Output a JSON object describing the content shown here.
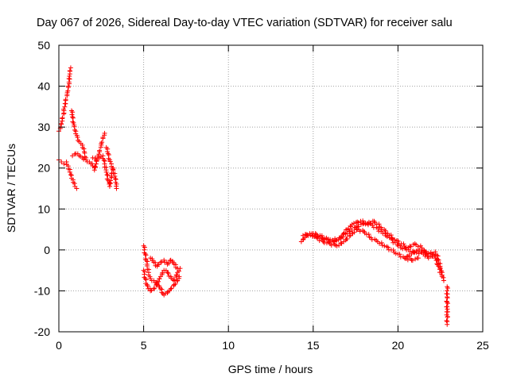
{
  "chart_data": {
    "type": "scatter",
    "title": "Day 067 of 2026, Sidereal Day-to-day VTEC variation (SDTVAR) for receiver salu",
    "xlabel": "GPS time / hours",
    "ylabel": "SDTVAR / TECUs",
    "xlim": [
      0,
      25
    ],
    "ylim": [
      -20,
      50
    ],
    "xticks": [
      0,
      5,
      10,
      15,
      20,
      25
    ],
    "yticks": [
      -20,
      -10,
      0,
      10,
      20,
      30,
      40,
      50
    ],
    "grid": true,
    "marker": "+",
    "color": "#ff0000",
    "series": [
      {
        "name": "SDTVAR",
        "segments": [
          [
            [
              0.0,
              29.0
            ],
            [
              0.1,
              30.0
            ],
            [
              0.2,
              31.5
            ],
            [
              0.3,
              34.0
            ],
            [
              0.4,
              36.5
            ],
            [
              0.5,
              38.5
            ],
            [
              0.55,
              40.0
            ],
            [
              0.6,
              41.0
            ],
            [
              0.65,
              43.0
            ],
            [
              0.7,
              44.5
            ]
          ],
          [
            [
              0.0,
              22.0
            ],
            [
              0.15,
              21.5
            ],
            [
              0.3,
              21.0
            ],
            [
              0.45,
              21.5
            ],
            [
              0.55,
              20.5
            ],
            [
              0.65,
              19.0
            ],
            [
              0.75,
              17.5
            ],
            [
              0.85,
              16.5
            ],
            [
              0.95,
              15.5
            ],
            [
              1.05,
              15.0
            ]
          ],
          [
            [
              0.75,
              34.0
            ],
            [
              0.8,
              32.5
            ],
            [
              0.9,
              30.5
            ],
            [
              1.0,
              29.0
            ],
            [
              1.1,
              27.5
            ],
            [
              1.2,
              26.5
            ],
            [
              1.3,
              26.0
            ],
            [
              1.4,
              25.0
            ],
            [
              1.5,
              24.0
            ],
            [
              1.6,
              22.5
            ]
          ],
          [
            [
              0.8,
              23.0
            ],
            [
              1.0,
              23.5
            ],
            [
              1.2,
              23.0
            ],
            [
              1.4,
              22.5
            ],
            [
              1.6,
              22.0
            ],
            [
              1.8,
              21.5
            ],
            [
              2.0,
              20.5
            ],
            [
              2.1,
              19.5
            ],
            [
              2.2,
              21.0
            ],
            [
              2.3,
              22.5
            ],
            [
              2.4,
              24.0
            ],
            [
              2.5,
              26.0
            ],
            [
              2.6,
              27.5
            ],
            [
              2.7,
              28.5
            ]
          ],
          [
            [
              2.0,
              22.5
            ],
            [
              2.2,
              22.0
            ],
            [
              2.4,
              22.5
            ],
            [
              2.6,
              23.0
            ],
            [
              2.7,
              21.0
            ],
            [
              2.8,
              19.0
            ],
            [
              2.9,
              17.0
            ],
            [
              3.0,
              15.5
            ],
            [
              3.1,
              18.0
            ],
            [
              3.2,
              20.0
            ]
          ],
          [
            [
              2.8,
              25.0
            ],
            [
              2.9,
              23.5
            ],
            [
              3.0,
              22.0
            ],
            [
              3.1,
              21.0
            ],
            [
              3.2,
              19.5
            ],
            [
              3.3,
              18.0
            ],
            [
              3.35,
              16.5
            ],
            [
              3.4,
              15.0
            ]
          ],
          [
            [
              5.0,
              1.0
            ],
            [
              5.1,
              -1.0
            ],
            [
              5.2,
              -3.5
            ],
            [
              5.3,
              -5.5
            ],
            [
              5.4,
              -7.0
            ],
            [
              5.6,
              -7.5
            ],
            [
              5.8,
              -8.5
            ],
            [
              6.0,
              -9.5
            ],
            [
              6.2,
              -11.0
            ],
            [
              6.4,
              -10.5
            ],
            [
              6.6,
              -9.5
            ],
            [
              6.8,
              -8.5
            ],
            [
              7.0,
              -7.5
            ],
            [
              7.1,
              -6.5
            ]
          ],
          [
            [
              5.0,
              -5.0
            ],
            [
              5.1,
              -7.0
            ],
            [
              5.2,
              -8.5
            ],
            [
              5.4,
              -10.0
            ],
            [
              5.6,
              -9.5
            ],
            [
              5.8,
              -8.0
            ],
            [
              6.0,
              -6.5
            ],
            [
              6.2,
              -5.0
            ],
            [
              6.4,
              -5.5
            ],
            [
              6.6,
              -6.5
            ],
            [
              6.8,
              -7.5
            ],
            [
              7.0,
              -5.5
            ],
            [
              7.15,
              -4.5
            ]
          ],
          [
            [
              5.4,
              -2.0
            ],
            [
              5.6,
              -3.0
            ],
            [
              5.8,
              -4.0
            ],
            [
              6.0,
              -3.0
            ],
            [
              6.2,
              -2.5
            ],
            [
              6.4,
              -3.5
            ],
            [
              6.6,
              -2.5
            ],
            [
              6.8,
              -3.5
            ],
            [
              7.0,
              -4.5
            ]
          ],
          [
            [
              14.3,
              2.0
            ],
            [
              14.5,
              3.0
            ],
            [
              14.7,
              3.5
            ],
            [
              15.0,
              3.5
            ],
            [
              15.5,
              3.0
            ],
            [
              16.0,
              2.5
            ],
            [
              16.5,
              2.5
            ],
            [
              17.0,
              4.0
            ],
            [
              17.5,
              5.5
            ],
            [
              18.0,
              6.5
            ],
            [
              18.5,
              6.0
            ],
            [
              19.0,
              4.5
            ],
            [
              19.5,
              3.0
            ],
            [
              20.0,
              1.0
            ],
            [
              20.5,
              0.0
            ],
            [
              21.0,
              -0.5
            ],
            [
              21.5,
              -1.0
            ]
          ],
          [
            [
              14.4,
              3.5
            ],
            [
              14.8,
              4.0
            ],
            [
              15.2,
              3.0
            ],
            [
              15.6,
              2.0
            ],
            [
              16.0,
              1.5
            ],
            [
              16.4,
              1.0
            ],
            [
              16.8,
              2.0
            ],
            [
              17.2,
              3.5
            ],
            [
              17.6,
              5.0
            ],
            [
              18.0,
              4.5
            ],
            [
              18.4,
              3.0
            ],
            [
              18.8,
              2.0
            ],
            [
              19.2,
              1.0
            ],
            [
              19.6,
              0.0
            ],
            [
              20.0,
              -1.0
            ],
            [
              20.4,
              -2.0
            ],
            [
              20.8,
              -2.5
            ],
            [
              21.2,
              -2.0
            ]
          ],
          [
            [
              15.0,
              4.0
            ],
            [
              15.4,
              3.5
            ],
            [
              15.8,
              2.5
            ],
            [
              16.2,
              2.0
            ],
            [
              16.6,
              3.0
            ],
            [
              17.0,
              5.0
            ],
            [
              17.4,
              6.5
            ],
            [
              17.8,
              7.0
            ],
            [
              18.2,
              6.5
            ],
            [
              18.6,
              7.0
            ],
            [
              19.0,
              5.5
            ],
            [
              19.4,
              4.0
            ],
            [
              19.8,
              2.5
            ],
            [
              20.2,
              1.5
            ],
            [
              20.6,
              0.5
            ],
            [
              21.0,
              1.5
            ],
            [
              21.4,
              0.5
            ],
            [
              21.8,
              -1.5
            ]
          ],
          [
            [
              20.4,
              -2.0
            ],
            [
              20.8,
              -1.0
            ],
            [
              21.2,
              0.0
            ],
            [
              21.6,
              -0.5
            ],
            [
              22.0,
              -1.0
            ],
            [
              22.2,
              -2.0
            ],
            [
              22.4,
              -4.0
            ],
            [
              22.6,
              -6.5
            ],
            [
              22.7,
              -7.5
            ]
          ],
          [
            [
              21.6,
              -1.5
            ],
            [
              21.8,
              -2.0
            ],
            [
              22.0,
              -1.5
            ],
            [
              22.2,
              -0.5
            ],
            [
              22.4,
              -2.5
            ],
            [
              22.5,
              -4.5
            ],
            [
              22.6,
              -5.5
            ]
          ],
          [
            [
              22.9,
              -9.0
            ],
            [
              22.9,
              -11.5
            ],
            [
              22.9,
              -17.5
            ],
            [
              22.9,
              -18.2
            ]
          ]
        ]
      }
    ]
  }
}
